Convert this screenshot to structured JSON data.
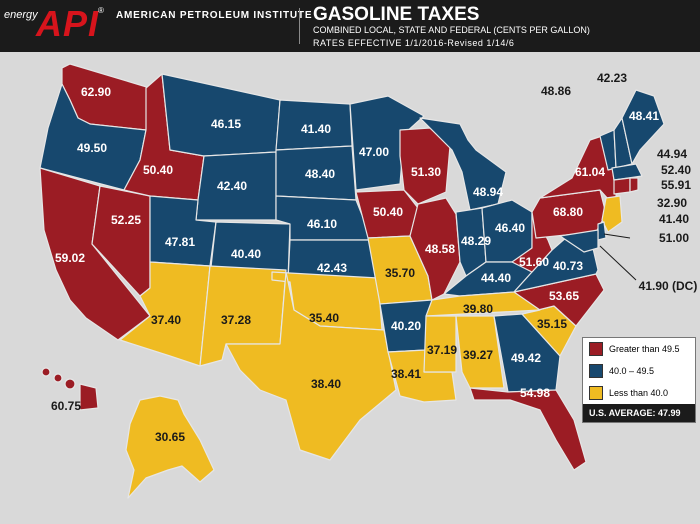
{
  "header": {
    "brand_energy": "energy",
    "brand_logo": "API",
    "brand_reg": "®",
    "org_name": "AMERICAN PETROLEUM INSTITUTE",
    "title": "GASOLINE TAXES",
    "subtitle": "COMBINED LOCAL, STATE AND FEDERAL (CENTS PER GALLON)",
    "rates_note": "RATES EFFECTIVE 1/1/2016-Revised 1/14/6"
  },
  "colors": {
    "high": "#9b1c24",
    "mid": "#17486e",
    "low": "#efbb22",
    "background": "#d9d9d9",
    "border": "#e6e6e6"
  },
  "legend": {
    "high": "Greater than 49.5",
    "mid": "40.0 – 49.5",
    "low": "Less than 40.0",
    "us_average": "U.S. AVERAGE: 47.99"
  },
  "states": {
    "WA": "62.90",
    "OR": "49.50",
    "CA": "59.02",
    "NV": "52.25",
    "ID": "50.40",
    "MT": "46.15",
    "WY": "42.40",
    "UT": "47.81",
    "AZ": "37.40",
    "CO": "40.40",
    "NM": "37.28",
    "ND": "41.40",
    "SD": "48.40",
    "NE": "46.10",
    "KS": "42.43",
    "OK": "35.40",
    "TX": "38.40",
    "MN": "47.00",
    "IA": "50.40",
    "MO": "35.70",
    "AR": "40.20",
    "LA": "38.41",
    "WI": "51.30",
    "IL": "48.58",
    "MI": "48.94",
    "IN": "48.29",
    "OH": "46.40",
    "KY": "44.40",
    "TN": "39.80",
    "MS": "37.19",
    "AL": "39.27",
    "GA": "49.42",
    "FL": "54.98",
    "SC": "35.15",
    "NC": "53.65",
    "VA": "40.73",
    "WV": "51.60",
    "PA": "68.80",
    "NY": "61.04",
    "VT": "48.86",
    "NH": "42.23",
    "ME": "48.41",
    "MA": "44.94",
    "RI": "52.40",
    "CT": "55.91",
    "NJ": "32.90",
    "DE": "41.40",
    "MD": "51.00",
    "DC": "41.90 (DC)",
    "AK": "30.65",
    "HI": "60.75"
  }
}
